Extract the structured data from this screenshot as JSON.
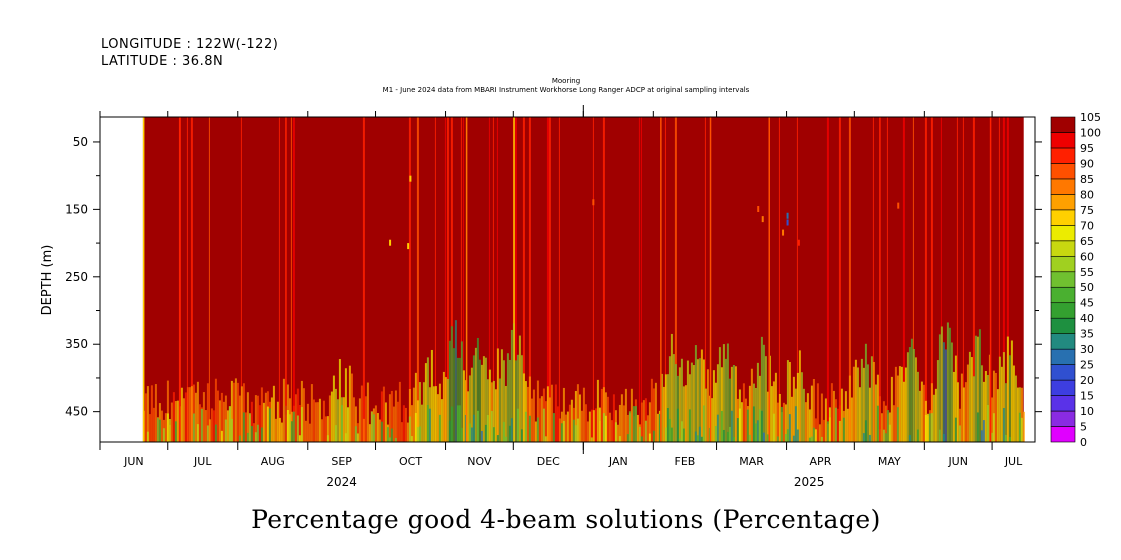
{
  "header": {
    "longitude": "LONGITUDE : 122W(-122)",
    "latitude": "LATITUDE : 36.8N",
    "title_line1": "Mooring",
    "title_line2": "M1 - June 2024 data from MBARI Instrument Workhorse Long Ranger ADCP at original sampling intervals"
  },
  "caption": "Percentage good 4-beam solutions (Percentage)",
  "chart_data": {
    "type": "heatmap",
    "title": "Mooring",
    "subtitle": "M1 - June 2024 data from MBARI Instrument Workhorse Long Ranger ADCP at original sampling intervals",
    "xlabel": "",
    "ylabel": "DEPTH (m)",
    "y_axis_inverted": true,
    "ylim": [
      13,
      495
    ],
    "xlim": [
      "2024-06-01",
      "2025-07-20"
    ],
    "y_ticks_labeled": [
      50,
      150,
      250,
      350,
      450
    ],
    "y_ticks_minor": [
      100,
      200,
      300,
      400
    ],
    "x_month_labels": [
      "JUN",
      "JUL",
      "AUG",
      "SEP",
      "OCT",
      "NOV",
      "DEC",
      "JAN",
      "FEB",
      "MAR",
      "APR",
      "MAY",
      "JUN",
      "JUL"
    ],
    "x_year_labels": [
      "2024",
      "2025"
    ],
    "data_start": "2024-06-20",
    "data_end": "2025-07-15",
    "colorbar": {
      "levels": [
        0,
        5,
        10,
        15,
        20,
        25,
        30,
        35,
        40,
        45,
        50,
        55,
        60,
        65,
        70,
        75,
        80,
        85,
        90,
        95,
        100,
        105
      ],
      "colors": [
        "#e000ff",
        "#8a2be2",
        "#5a32e8",
        "#3d3ee0",
        "#3050d0",
        "#2870b0",
        "#228a80",
        "#1e9040",
        "#34a030",
        "#4ab030",
        "#70c030",
        "#a0d020",
        "#c8d810",
        "#ecec00",
        "#ffd000",
        "#ffa000",
        "#ff7800",
        "#ff5000",
        "#ff2000",
        "#ee0000",
        "#a00000"
      ]
    },
    "summary": "Percentage good is near 100 (dark red) across most depths and times, with lower values (red, orange, yellow, occasionally green to purple) near the bottom depths (about 380-495 m) and in thin vertical streaks, e.g. around early NOV and early DEC 2024 and MAR-JUN 2025."
  }
}
